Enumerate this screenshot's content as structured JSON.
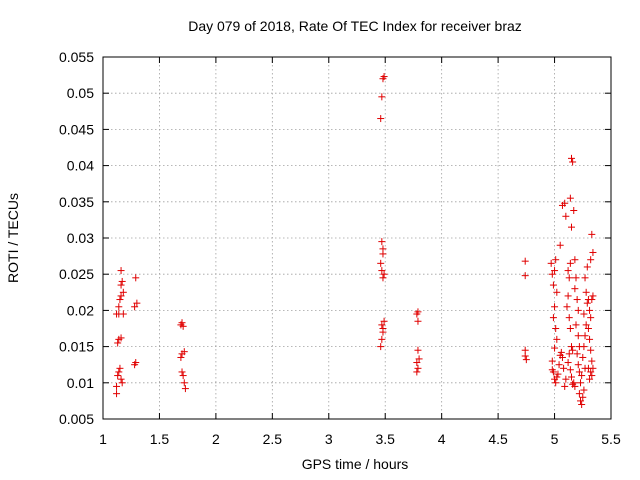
{
  "chart_data": {
    "type": "scatter",
    "title": "Day 079 of 2018, Rate Of TEC Index for receiver braz",
    "xlabel": "GPS time / hours",
    "ylabel": "ROTI / TECUs",
    "xlim": [
      1,
      5.5
    ],
    "ylim": [
      0.005,
      0.055
    ],
    "x_ticks": [
      "1",
      "1.5",
      "2",
      "2.5",
      "3",
      "3.5",
      "4",
      "4.5",
      "5",
      "5.5"
    ],
    "y_ticks": [
      "0.005",
      "0.01",
      "0.015",
      "0.02",
      "0.025",
      "0.03",
      "0.035",
      "0.04",
      "0.045",
      "0.05",
      "0.055"
    ],
    "grid": true,
    "marker": "+",
    "color": "#e00000",
    "series": [
      {
        "points": [
          [
            1.12,
            0.0085
          ],
          [
            1.12,
            0.0095
          ],
          [
            1.13,
            0.011
          ],
          [
            1.14,
            0.0115
          ],
          [
            1.15,
            0.012
          ],
          [
            1.16,
            0.0105
          ],
          [
            1.17,
            0.01
          ],
          [
            1.13,
            0.0155
          ],
          [
            1.14,
            0.016
          ],
          [
            1.16,
            0.0162
          ],
          [
            1.12,
            0.0195
          ],
          [
            1.14,
            0.0205
          ],
          [
            1.15,
            0.0215
          ],
          [
            1.16,
            0.022
          ],
          [
            1.14,
            0.0195
          ],
          [
            1.16,
            0.0235
          ],
          [
            1.17,
            0.024
          ],
          [
            1.16,
            0.0255
          ],
          [
            1.18,
            0.0225
          ],
          [
            1.18,
            0.0195
          ],
          [
            1.28,
            0.0125
          ],
          [
            1.29,
            0.0128
          ],
          [
            1.28,
            0.0205
          ],
          [
            1.3,
            0.021
          ],
          [
            1.29,
            0.0245
          ],
          [
            1.69,
            0.018
          ],
          [
            1.7,
            0.0183
          ],
          [
            1.71,
            0.0178
          ],
          [
            1.69,
            0.0135
          ],
          [
            1.7,
            0.014
          ],
          [
            1.72,
            0.0143
          ],
          [
            1.7,
            0.0115
          ],
          [
            1.71,
            0.011
          ],
          [
            1.72,
            0.01
          ],
          [
            1.73,
            0.0092
          ],
          [
            3.46,
            0.0465
          ],
          [
            3.47,
            0.0495
          ],
          [
            3.48,
            0.052
          ],
          [
            3.49,
            0.0523
          ],
          [
            3.47,
            0.0295
          ],
          [
            3.48,
            0.0285
          ],
          [
            3.48,
            0.0278
          ],
          [
            3.46,
            0.0265
          ],
          [
            3.47,
            0.0255
          ],
          [
            3.48,
            0.0245
          ],
          [
            3.49,
            0.025
          ],
          [
            3.47,
            0.018
          ],
          [
            3.48,
            0.0175
          ],
          [
            3.49,
            0.0185
          ],
          [
            3.48,
            0.017
          ],
          [
            3.47,
            0.016
          ],
          [
            3.46,
            0.015
          ],
          [
            3.78,
            0.0195
          ],
          [
            3.79,
            0.0198
          ],
          [
            3.79,
            0.0185
          ],
          [
            3.78,
            0.0128
          ],
          [
            3.79,
            0.012
          ],
          [
            3.8,
            0.0133
          ],
          [
            3.78,
            0.0115
          ],
          [
            3.79,
            0.0145
          ],
          [
            4.74,
            0.0268
          ],
          [
            4.74,
            0.0248
          ],
          [
            4.74,
            0.0145
          ],
          [
            4.74,
            0.0137
          ],
          [
            4.75,
            0.0132
          ],
          [
            4.97,
            0.0265
          ],
          [
            4.98,
            0.025
          ],
          [
            4.99,
            0.0235
          ],
          [
            5.0,
            0.0255
          ],
          [
            5.01,
            0.027
          ],
          [
            5.02,
            0.0225
          ],
          [
            5.0,
            0.0205
          ],
          [
            4.99,
            0.019
          ],
          [
            5.01,
            0.0175
          ],
          [
            5.02,
            0.016
          ],
          [
            5.0,
            0.0148
          ],
          [
            4.98,
            0.013
          ],
          [
            4.99,
            0.0115
          ],
          [
            5.0,
            0.0105
          ],
          [
            5.01,
            0.01
          ],
          [
            5.02,
            0.0108
          ],
          [
            5.03,
            0.0112
          ],
          [
            4.98,
            0.0118
          ],
          [
            5.04,
            0.0125
          ],
          [
            5.05,
            0.0138
          ],
          [
            5.06,
            0.0142
          ],
          [
            5.07,
            0.0135
          ],
          [
            5.08,
            0.012
          ],
          [
            5.09,
            0.0095
          ],
          [
            5.1,
            0.0105
          ],
          [
            5.05,
            0.029
          ],
          [
            5.07,
            0.0345
          ],
          [
            5.09,
            0.0348
          ],
          [
            5.1,
            0.033
          ],
          [
            5.12,
            0.0255
          ],
          [
            5.13,
            0.0245
          ],
          [
            5.14,
            0.0265
          ],
          [
            5.12,
            0.022
          ],
          [
            5.11,
            0.0205
          ],
          [
            5.13,
            0.019
          ],
          [
            5.14,
            0.0175
          ],
          [
            5.15,
            0.015
          ],
          [
            5.16,
            0.0145
          ],
          [
            5.13,
            0.014
          ],
          [
            5.12,
            0.0128
          ],
          [
            5.14,
            0.0118
          ],
          [
            5.15,
            0.0108
          ],
          [
            5.16,
            0.0098
          ],
          [
            5.17,
            0.01
          ],
          [
            5.18,
            0.0095
          ],
          [
            5.15,
            0.041
          ],
          [
            5.16,
            0.0405
          ],
          [
            5.14,
            0.0355
          ],
          [
            5.17,
            0.0338
          ],
          [
            5.15,
            0.0315
          ],
          [
            5.18,
            0.027
          ],
          [
            5.19,
            0.0245
          ],
          [
            5.18,
            0.023
          ],
          [
            5.2,
            0.0215
          ],
          [
            5.21,
            0.02
          ],
          [
            5.19,
            0.018
          ],
          [
            5.21,
            0.0165
          ],
          [
            5.22,
            0.015
          ],
          [
            5.2,
            0.014
          ],
          [
            5.21,
            0.0125
          ],
          [
            5.22,
            0.0115
          ],
          [
            5.23,
            0.01
          ],
          [
            5.22,
            0.0085
          ],
          [
            5.23,
            0.0075
          ],
          [
            5.24,
            0.007
          ],
          [
            5.25,
            0.008
          ],
          [
            5.26,
            0.009
          ],
          [
            5.24,
            0.011
          ],
          [
            5.27,
            0.012
          ],
          [
            5.25,
            0.0135
          ],
          [
            5.26,
            0.015
          ],
          [
            5.27,
            0.0165
          ],
          [
            5.28,
            0.018
          ],
          [
            5.26,
            0.0195
          ],
          [
            5.29,
            0.021
          ],
          [
            5.28,
            0.0225
          ],
          [
            5.27,
            0.0245
          ],
          [
            5.29,
            0.026
          ],
          [
            5.3,
            0.0215
          ],
          [
            5.31,
            0.02
          ],
          [
            5.32,
            0.019
          ],
          [
            5.3,
            0.0175
          ],
          [
            5.31,
            0.016
          ],
          [
            5.32,
            0.0145
          ],
          [
            5.33,
            0.013
          ],
          [
            5.3,
            0.012
          ],
          [
            5.32,
            0.0115
          ],
          [
            5.33,
            0.011
          ],
          [
            5.34,
            0.012
          ],
          [
            5.31,
            0.0105
          ],
          [
            5.33,
            0.0305
          ],
          [
            5.34,
            0.028
          ],
          [
            5.32,
            0.027
          ],
          [
            5.34,
            0.022
          ],
          [
            5.33,
            0.0215
          ]
        ]
      }
    ]
  }
}
